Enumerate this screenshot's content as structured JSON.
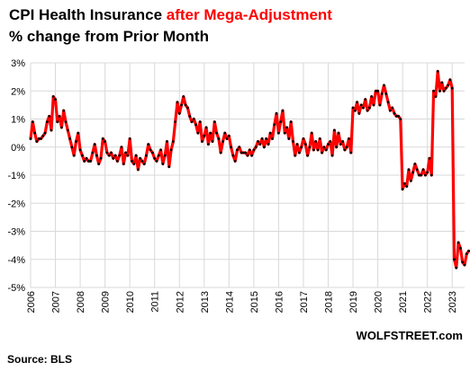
{
  "title": {
    "part1": "CPI Health Insurance ",
    "part2": "after Mega-Adjustment"
  },
  "subtitle": "% change from Prior Month",
  "source": "Source: BLS",
  "credit": "WOLFSTREET.com",
  "colors": {
    "line": "#ff0000",
    "markers": "#000000",
    "grid": "#d9d9d9",
    "accent": "#ff0000"
  },
  "chart_data": {
    "type": "line",
    "title": "CPI Health Insurance after Mega-Adjustment",
    "subtitle": "% change from Prior Month",
    "xlabel": "",
    "ylabel": "",
    "x_range": [
      2006.0,
      2023.5
    ],
    "ylim": [
      -5,
      3
    ],
    "grid": true,
    "legend": "none",
    "x_ticks": [
      {
        "value": 2006,
        "label": "2006"
      },
      {
        "value": 2007,
        "label": "2007"
      },
      {
        "value": 2008,
        "label": "2008"
      },
      {
        "value": 2009,
        "label": "2009"
      },
      {
        "value": 2010,
        "label": "2010"
      },
      {
        "value": 2011,
        "label": "2011"
      },
      {
        "value": 2012,
        "label": "2012"
      },
      {
        "value": 2013,
        "label": "2013"
      },
      {
        "value": 2014,
        "label": "2014"
      },
      {
        "value": 2015,
        "label": "2015"
      },
      {
        "value": 2016,
        "label": "2016"
      },
      {
        "value": 2017,
        "label": "2017"
      },
      {
        "value": 2018,
        "label": "2018"
      },
      {
        "value": 2019,
        "label": "2019"
      },
      {
        "value": 2020,
        "label": "2020"
      },
      {
        "value": 2021,
        "label": "2021"
      },
      {
        "value": 2022,
        "label": "2022"
      },
      {
        "value": 2023,
        "label": "2023"
      }
    ],
    "y_ticks": [
      {
        "value": 3,
        "label": "3%"
      },
      {
        "value": 2,
        "label": "2%"
      },
      {
        "value": 1,
        "label": "1%"
      },
      {
        "value": 0,
        "label": "0%"
      },
      {
        "value": -1,
        "label": "-1%"
      },
      {
        "value": -2,
        "label": "-2%"
      },
      {
        "value": -3,
        "label": "-3%"
      },
      {
        "value": -4,
        "label": "-4%"
      },
      {
        "value": -5,
        "label": "-5%"
      }
    ],
    "series": [
      {
        "start": "2006-01",
        "interval": "month",
        "values": [
          0.3,
          0.9,
          0.5,
          0.2,
          0.3,
          0.3,
          0.4,
          0.5,
          0.9,
          1.1,
          0.6,
          1.8,
          1.7,
          0.9,
          1.1,
          0.7,
          1.3,
          0.9,
          0.6,
          0.3,
          0.0,
          -0.3,
          0.2,
          0.5,
          -0.1,
          -0.3,
          -0.5,
          -0.4,
          -0.5,
          -0.5,
          -0.2,
          0.1,
          -0.3,
          -0.6,
          -0.4,
          0.3,
          0.2,
          -0.2,
          -0.3,
          -0.2,
          -0.4,
          -0.3,
          -0.5,
          -0.3,
          0.0,
          -0.6,
          -0.2,
          -0.3,
          0.3,
          -0.5,
          -0.6,
          -0.3,
          -0.8,
          -0.4,
          -0.5,
          -0.6,
          -0.3,
          0.1,
          -0.1,
          -0.2,
          -0.4,
          -0.5,
          -0.3,
          -0.1,
          -0.6,
          -0.3,
          0.2,
          -0.7,
          -0.1,
          0.2,
          0.9,
          1.6,
          1.2,
          1.5,
          1.8,
          1.5,
          1.4,
          1.1,
          0.9,
          1.0,
          0.8,
          0.5,
          0.9,
          0.2,
          0.4,
          0.7,
          0.1,
          0.5,
          0.2,
          0.9,
          0.5,
          0.3,
          -0.2,
          0.2,
          0.5,
          0.3,
          0.4,
          0.0,
          -0.3,
          -0.5,
          -0.1,
          0.0,
          -0.2,
          -0.2,
          -0.2,
          -0.3,
          -0.1,
          -0.3,
          -0.1,
          0.0,
          0.2,
          0.1,
          0.3,
          0.0,
          0.3,
          0.1,
          0.5,
          0.3,
          0.8,
          1.2,
          0.5,
          0.9,
          1.3,
          0.5,
          0.7,
          0.3,
          0.9,
          0.2,
          -0.3,
          0.1,
          -0.2,
          0.0,
          0.3,
          0.1,
          -0.3,
          0.0,
          0.5,
          -0.1,
          0.2,
          -0.1,
          0.3,
          -0.2,
          0.0,
          -0.1,
          0.1,
          0.2,
          -0.3,
          0.6,
          0.0,
          0.5,
          0.1,
          0.2,
          -0.1,
          0.0,
          0.3,
          -0.2,
          1.4,
          1.3,
          1.6,
          1.2,
          1.5,
          1.4,
          1.7,
          1.3,
          1.4,
          1.8,
          1.5,
          2.0,
          2.0,
          1.5,
          1.9,
          2.2,
          1.9,
          1.6,
          1.3,
          1.4,
          1.2,
          1.1,
          1.1,
          1.0,
          -1.5,
          -1.3,
          -1.4,
          -0.8,
          -1.2,
          -0.9,
          -0.6,
          -0.8,
          -1.0,
          -1.0,
          -0.8,
          -1.0,
          -0.9,
          -0.4,
          -1.0,
          2.0,
          1.8,
          2.7,
          2.0,
          2.3,
          2.0,
          2.1,
          2.2,
          2.4,
          2.1,
          -4.0,
          -4.3,
          -3.4,
          -3.6,
          -4.1,
          -4.2,
          -3.8,
          -3.7
        ]
      }
    ]
  }
}
